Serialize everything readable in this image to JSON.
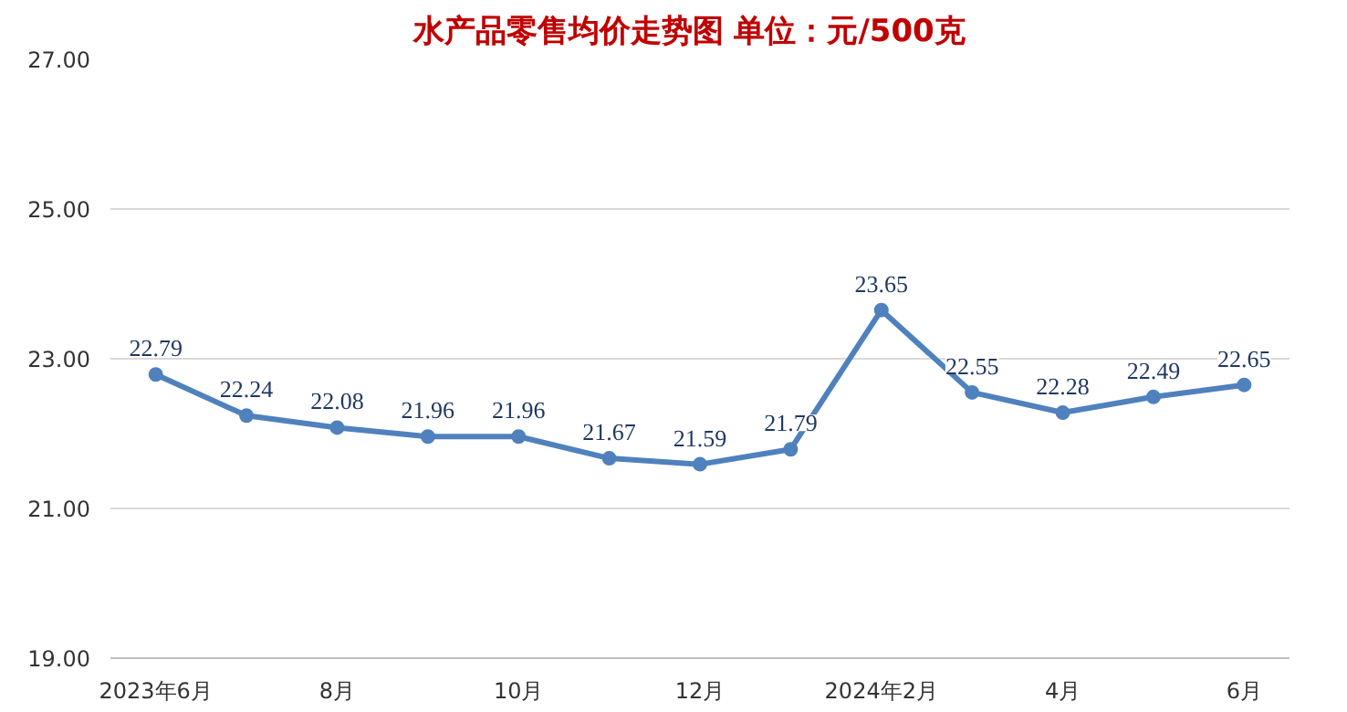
{
  "chart_data": {
    "type": "line",
    "title": "水产品零售均价走势图   单位：元/500克",
    "categories": [
      "2023年6月",
      null,
      "8月",
      null,
      "10月",
      null,
      "12月",
      null,
      "2024年2月",
      null,
      "4月",
      null,
      "6月"
    ],
    "series": [
      {
        "color": "#4f81bd",
        "values": [
          22.79,
          22.24,
          22.08,
          21.96,
          21.96,
          21.67,
          21.59,
          21.79,
          23.65,
          22.55,
          22.28,
          22.49,
          22.65
        ]
      }
    ],
    "ylim": [
      19,
      27
    ],
    "yticks": [
      {
        "value": 19,
        "label": "19.00"
      },
      {
        "value": 21,
        "label": "21.00"
      },
      {
        "value": 23,
        "label": "23.00"
      },
      {
        "value": 25,
        "label": "25.00"
      },
      {
        "value": 27,
        "label": "27.00"
      }
    ],
    "grid": "y",
    "marker": "circle",
    "line_style": "solid",
    "data_labels": true
  }
}
